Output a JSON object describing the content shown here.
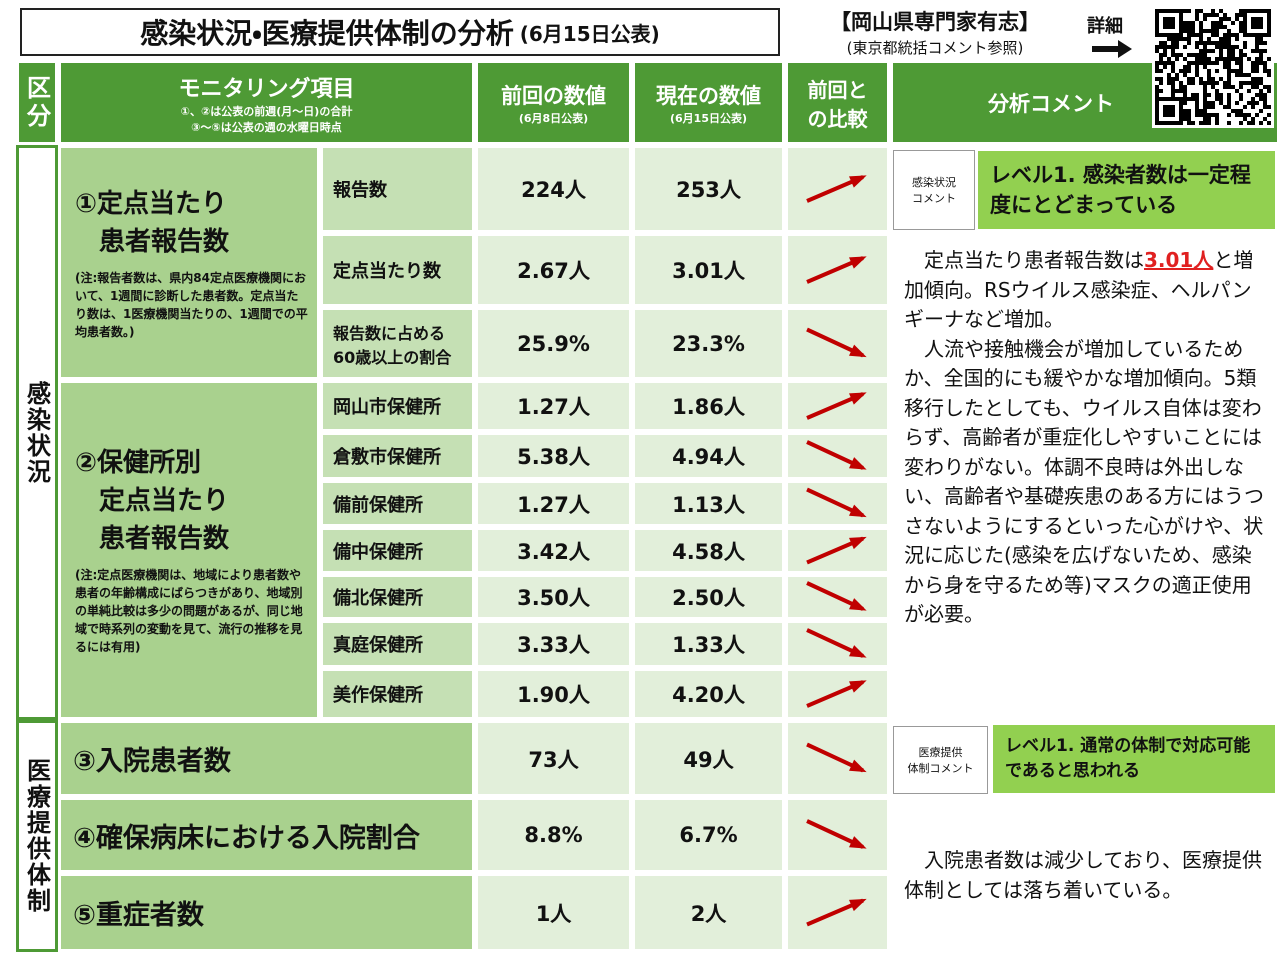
{
  "header": {
    "title": "感染状況・医療提供体制の分析",
    "title_note": "(6月15日公表)",
    "org": "【岡山県専門家有志】",
    "org_note": "(東京都統括コメント参照)",
    "detail_label": "詳細"
  },
  "table": {
    "header": {
      "category": "区分",
      "item": "モニタリング項目",
      "item_notes": [
        "①、②は公表の前週(月～日)の合計",
        "③～⑤は公表の週の水曜日時点"
      ],
      "previous": "前回の数値",
      "previous_note": "(6月8日公表)",
      "current": "現在の数値",
      "current_note": "(6月15日公表)",
      "compare_lines": [
        "前回と",
        "の比較"
      ],
      "comment": "分析コメント"
    },
    "sections": [
      "感染状況",
      "医療提供体制"
    ],
    "groups": [
      {
        "title_lines": [
          "①定点当たり",
          "患者報告数"
        ],
        "note": "(注:報告者数は、県内84定点医療機関において、1週間に診断した患者数。定点当たり数は、1医療機関当たりの、1週間での平均患者数。)"
      },
      {
        "title_lines": [
          "②保健所別",
          "定点当たり",
          "患者報告数"
        ],
        "note": "(注:定点医療機関は、地域により患者数や患者の年齢構成にばらつきがあり、地域別の単純比較は多少の問題があるが、同じ地域で時系列の変動を見て、流行の推移を見るには有用)"
      }
    ],
    "rows": [
      {
        "item_lines": [
          "報告数"
        ],
        "previous": "224人",
        "current": "253人",
        "trend": "up"
      },
      {
        "item_lines": [
          "定点当たり数"
        ],
        "previous": "2.67人",
        "current": "3.01人",
        "trend": "up"
      },
      {
        "item_lines": [
          "報告数に占める",
          "60歳以上の割合"
        ],
        "previous": "25.9%",
        "current": "23.3%",
        "trend": "down"
      },
      {
        "item_lines": [
          "岡山市保健所"
        ],
        "previous": "1.27人",
        "current": "1.86人",
        "trend": "up"
      },
      {
        "item_lines": [
          "倉敷市保健所"
        ],
        "previous": "5.38人",
        "current": "4.94人",
        "trend": "down"
      },
      {
        "item_lines": [
          "備前保健所"
        ],
        "previous": "1.27人",
        "current": "1.13人",
        "trend": "down"
      },
      {
        "item_lines": [
          "備中保健所"
        ],
        "previous": "3.42人",
        "current": "4.58人",
        "trend": "up"
      },
      {
        "item_lines": [
          "備北保健所"
        ],
        "previous": "3.50人",
        "current": "2.50人",
        "trend": "down"
      },
      {
        "item_lines": [
          "真庭保健所"
        ],
        "previous": "3.33人",
        "current": "1.33人",
        "trend": "down"
      },
      {
        "item_lines": [
          "美作保健所"
        ],
        "previous": "1.90人",
        "current": "4.20人",
        "trend": "up"
      }
    ],
    "medical_rows": [
      {
        "item": "③入院患者数",
        "previous": "73人",
        "current": "49人",
        "trend": "down"
      },
      {
        "item": "④確保病床における入院割合",
        "previous": "8.8%",
        "current": "6.7%",
        "trend": "down"
      },
      {
        "item": "⑤重症者数",
        "previous": "1人",
        "current": "2人",
        "trend": "up"
      }
    ],
    "infection_comment": {
      "tag_lines": [
        "感染状況",
        "コメント"
      ],
      "level": "レベル1. 感染者数は一定程度にとどまっている",
      "body_before": "定点当たり患者報告数は",
      "body_highlight": "3.01人",
      "body_after": "と増加傾向。RSウイルス感染症、ヘルパンギーナなど増加。",
      "body_paragraph2": "人流や接触機会が増加しているためか、全国的にも緩やかな増加傾向。5類移行したとしても、ウイルス自体は変わらず、高齢者が重症化しやすいことには変わりがない。体調不良時は外出しない、高齢者や基礎疾患のある方にはうつさないようにするといった心がけや、状況に応じた(感染を広げないため、感染から身を守るため等)マスクの適正使用が必要。"
    },
    "medical_comment": {
      "tag_lines": [
        "医療提供",
        "体制コメント"
      ],
      "level": "レベル1. 通常の体制で対応可能であると思われる",
      "body": "入院患者数は減少しており、医療提供体制としては落ち着いている。"
    }
  }
}
